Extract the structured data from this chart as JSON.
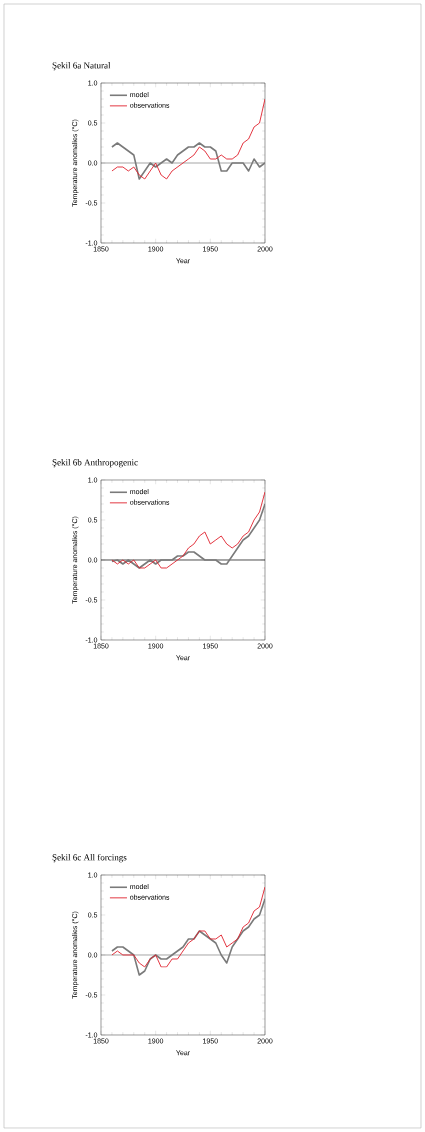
{
  "chart_data": [
    {
      "type": "line",
      "title": "Şekil 6a Natural",
      "xlabel": "Year",
      "ylabel": "Temperature anomalies (°C)",
      "legend": "top left",
      "x": [
        1860,
        1865,
        1870,
        1875,
        1880,
        1885,
        1890,
        1895,
        1900,
        1905,
        1910,
        1915,
        1920,
        1925,
        1930,
        1935,
        1940,
        1945,
        1950,
        1955,
        1960,
        1965,
        1970,
        1975,
        1980,
        1985,
        1990,
        1995,
        2000
      ],
      "series": [
        {
          "name": "model",
          "color": "#7a7a7a",
          "values": [
            0.2,
            0.25,
            0.2,
            0.15,
            0.1,
            -0.2,
            -0.1,
            0.0,
            -0.05,
            0.0,
            0.05,
            0.0,
            0.1,
            0.15,
            0.2,
            0.2,
            0.25,
            0.2,
            0.2,
            0.15,
            -0.1,
            -0.1,
            0.0,
            0.0,
            0.0,
            -0.1,
            0.05,
            -0.05,
            0.0
          ]
        },
        {
          "name": "observations",
          "color": "#e0202c",
          "values": [
            -0.1,
            -0.05,
            -0.05,
            -0.1,
            -0.05,
            -0.15,
            -0.2,
            -0.1,
            0.0,
            -0.15,
            -0.2,
            -0.1,
            -0.05,
            0.0,
            0.05,
            0.1,
            0.2,
            0.15,
            0.05,
            0.05,
            0.1,
            0.05,
            0.05,
            0.1,
            0.25,
            0.3,
            0.45,
            0.5,
            0.8
          ]
        }
      ],
      "xlim": [
        1850,
        2000
      ],
      "ylim": [
        -1,
        1
      ],
      "xticks": [
        1850,
        1900,
        1950,
        2000
      ],
      "yticks": [
        {
          "value": -1,
          "label": "-1.0"
        },
        {
          "value": -0.5,
          "label": "-0.5"
        },
        {
          "value": 0,
          "label": "0.0"
        },
        {
          "value": 0.5,
          "label": "0.5"
        },
        {
          "value": 1,
          "label": "1.0"
        }
      ],
      "ref_lines": [
        {
          "axis": "y",
          "value": 0,
          "color": "#000000"
        }
      ]
    },
    {
      "type": "line",
      "title": "Şekil 6b Anthropogenic",
      "xlabel": "Year",
      "ylabel": "Temperature anomalies (°C)",
      "legend": "top left",
      "x": [
        1860,
        1865,
        1870,
        1875,
        1880,
        1885,
        1890,
        1895,
        1900,
        1905,
        1910,
        1915,
        1920,
        1925,
        1930,
        1935,
        1940,
        1945,
        1950,
        1955,
        1960,
        1965,
        1970,
        1975,
        1980,
        1985,
        1990,
        1995,
        2000
      ],
      "series": [
        {
          "name": "model",
          "color": "#7a7a7a",
          "values": [
            -0.02,
            0.0,
            -0.05,
            0.0,
            -0.05,
            -0.1,
            -0.05,
            0.0,
            -0.05,
            0.0,
            0.0,
            0.0,
            0.05,
            0.05,
            0.1,
            0.1,
            0.05,
            0.0,
            0.0,
            0.0,
            -0.05,
            -0.05,
            0.05,
            0.15,
            0.25,
            0.3,
            0.4,
            0.5,
            0.7
          ]
        },
        {
          "name": "observations",
          "color": "#e0202c",
          "values": [
            0.0,
            -0.05,
            0.0,
            -0.05,
            0.0,
            -0.1,
            -0.1,
            -0.05,
            0.0,
            -0.1,
            -0.1,
            -0.05,
            0.0,
            0.05,
            0.15,
            0.2,
            0.3,
            0.35,
            0.2,
            0.25,
            0.3,
            0.2,
            0.15,
            0.2,
            0.3,
            0.35,
            0.5,
            0.6,
            0.85
          ]
        }
      ],
      "xlim": [
        1850,
        2000
      ],
      "ylim": [
        -1,
        1
      ],
      "xticks": [
        1850,
        1900,
        1950,
        2000
      ],
      "yticks": [
        {
          "value": -1,
          "label": "-1.0"
        },
        {
          "value": -0.5,
          "label": "-0.5"
        },
        {
          "value": 0,
          "label": "0.0"
        },
        {
          "value": 0.5,
          "label": "0.5"
        },
        {
          "value": 1,
          "label": "1.0"
        }
      ],
      "ref_lines": [
        {
          "axis": "y",
          "value": 0,
          "color": "#000000"
        }
      ]
    },
    {
      "type": "line",
      "title": "Şekil 6c All forcings",
      "xlabel": "Year",
      "ylabel": "Temperature anomalies (°C)",
      "legend": "top left",
      "x": [
        1860,
        1865,
        1870,
        1875,
        1880,
        1885,
        1890,
        1895,
        1900,
        1905,
        1910,
        1915,
        1920,
        1925,
        1930,
        1935,
        1940,
        1945,
        1950,
        1955,
        1960,
        1965,
        1970,
        1975,
        1980,
        1985,
        1990,
        1995,
        2000
      ],
      "series": [
        {
          "name": "model",
          "color": "#7a7a7a",
          "values": [
            0.05,
            0.1,
            0.1,
            0.05,
            0.0,
            -0.25,
            -0.2,
            -0.05,
            0.0,
            -0.05,
            -0.05,
            0.0,
            0.05,
            0.1,
            0.2,
            0.2,
            0.3,
            0.25,
            0.2,
            0.15,
            0.0,
            -0.1,
            0.1,
            0.2,
            0.3,
            0.35,
            0.45,
            0.5,
            0.7
          ]
        },
        {
          "name": "observations",
          "color": "#e0202c",
          "values": [
            0.0,
            0.05,
            0.0,
            0.0,
            0.0,
            -0.1,
            -0.15,
            -0.05,
            0.0,
            -0.15,
            -0.15,
            -0.05,
            -0.05,
            0.05,
            0.15,
            0.2,
            0.3,
            0.3,
            0.2,
            0.2,
            0.25,
            0.1,
            0.15,
            0.2,
            0.35,
            0.4,
            0.55,
            0.6,
            0.85
          ]
        }
      ],
      "xlim": [
        1850,
        2000
      ],
      "ylim": [
        -1,
        1
      ],
      "xticks": [
        1850,
        1900,
        1950,
        2000
      ],
      "yticks": [
        {
          "value": -1,
          "label": "-1.0"
        },
        {
          "value": -0.5,
          "label": "-0.5"
        },
        {
          "value": 0,
          "label": "0.0"
        },
        {
          "value": 0.5,
          "label": "0.5"
        },
        {
          "value": 1,
          "label": "1.0"
        }
      ],
      "ref_lines": [
        {
          "axis": "y",
          "value": 0,
          "color": "#000000"
        }
      ]
    }
  ]
}
